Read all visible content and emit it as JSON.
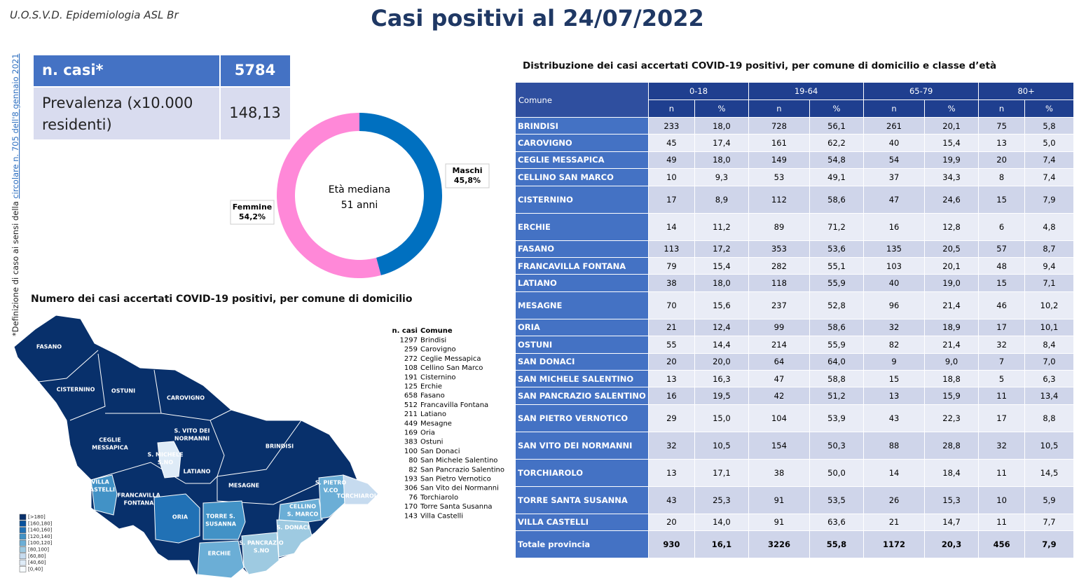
{
  "header": {
    "org": "U.O.S.V.D. Epidemiologia ASL Br",
    "title": "Casi positivi al 24/07/2022"
  },
  "side_note": {
    "text": "*Definizione di caso ai sensi della ",
    "link": "circolare n. 705 dell'8 gennaio 2021"
  },
  "summary": {
    "rows": [
      {
        "label": "n. casi*",
        "value": 5784
      },
      {
        "label_lines": [
          "Prevalenza (x10.000",
          "residenti)"
        ],
        "value": "148,13"
      }
    ]
  },
  "chart_data": {
    "type": "pie",
    "categories": [
      "Maschi",
      "Femmine"
    ],
    "values": [
      45.8,
      54.2
    ],
    "value_labels": [
      "45,8%",
      "54,2%"
    ],
    "colors": [
      "#0070c0",
      "#ff88d8"
    ],
    "center_text": [
      "Età mediana",
      "51 anni"
    ]
  },
  "map": {
    "title": "Numero dei casi accertati COVID-19 positivi, per comune di domicilio",
    "labels": [
      {
        "lines": [
          "FASANO"
        ]
      },
      {
        "lines": [
          "CISTERNINO"
        ]
      },
      {
        "lines": [
          "OSTUNI"
        ]
      },
      {
        "lines": [
          "CAROVIGNO"
        ]
      },
      {
        "lines": [
          "S. VITO DEI",
          "NORMANNI"
        ]
      },
      {
        "lines": [
          "CEGLIE",
          "MESSAPICA"
        ]
      },
      {
        "lines": [
          "S. MICHELE",
          "S.NO"
        ]
      },
      {
        "lines": [
          "LATIANO"
        ]
      },
      {
        "lines": [
          "BRINDISI"
        ]
      },
      {
        "lines": [
          "VILLA",
          "CASTELLI"
        ]
      },
      {
        "lines": [
          "FRANCAVILLA",
          "FONTANA"
        ]
      },
      {
        "lines": [
          "ORIA"
        ]
      },
      {
        "lines": [
          "TORRE S.",
          "SUSANNA"
        ]
      },
      {
        "lines": [
          "MESAGNE"
        ]
      },
      {
        "lines": [
          "S. PIETRO",
          "V.CO"
        ]
      },
      {
        "lines": [
          "TORCHIAROLO"
        ]
      },
      {
        "lines": [
          "CELLINO",
          "S. MARCO"
        ]
      },
      {
        "lines": [
          "S. DONACI"
        ]
      },
      {
        "lines": [
          "S. PANCRAZIO",
          "S.NO"
        ]
      },
      {
        "lines": [
          "ERCHIE"
        ]
      }
    ],
    "legend": [
      {
        "label": "[>180]",
        "color": "#08306b"
      },
      {
        "label": "[160,180]",
        "color": "#08519c"
      },
      {
        "label": "[140,160]",
        "color": "#2171b5"
      },
      {
        "label": "[120,140]",
        "color": "#4292c6"
      },
      {
        "label": "[100,120]",
        "color": "#6baed6"
      },
      {
        "label": "[80,100]",
        "color": "#9ecae1"
      },
      {
        "label": "[60,80]",
        "color": "#c6dbef"
      },
      {
        "label": "[40,60]",
        "color": "#deebf7"
      },
      {
        "label": "[0,40]",
        "color": "#f7fbff"
      }
    ],
    "list": {
      "headers": [
        "n. casi",
        "Comune"
      ],
      "rows": [
        [
          1297,
          "Brindisi"
        ],
        [
          259,
          "Carovigno"
        ],
        [
          272,
          "Ceglie Messapica"
        ],
        [
          108,
          "Cellino San Marco"
        ],
        [
          191,
          "Cisternino"
        ],
        [
          125,
          "Erchie"
        ],
        [
          658,
          "Fasano"
        ],
        [
          512,
          "Francavilla Fontana"
        ],
        [
          211,
          "Latiano"
        ],
        [
          449,
          "Mesagne"
        ],
        [
          169,
          "Oria"
        ],
        [
          383,
          "Ostuni"
        ],
        [
          100,
          "San Donaci"
        ],
        [
          80,
          "San Michele Salentino"
        ],
        [
          82,
          "San Pancrazio Salentino"
        ],
        [
          193,
          "San Pietro Vernotico"
        ],
        [
          306,
          "San Vito dei Normanni"
        ],
        [
          76,
          "Torchiarolo"
        ],
        [
          170,
          "Torre Santa Susanna"
        ],
        [
          143,
          "Villa Castelli"
        ]
      ]
    }
  },
  "table": {
    "title": "Distribuzione dei casi accertati COVID-19 positivi, per comune di domicilio e classe d’età",
    "first_header": "Comune",
    "groups": [
      "0-18",
      "19-64",
      "65-79",
      "80+"
    ],
    "subheaders": [
      "n",
      "%",
      "n",
      "%",
      "n",
      "%",
      "n",
      "%"
    ],
    "rows": [
      [
        "BRINDISI",
        233,
        "18,0",
        728,
        "56,1",
        261,
        "20,1",
        75,
        "5,8"
      ],
      [
        "CAROVIGNO",
        45,
        "17,4",
        161,
        "62,2",
        40,
        "15,4",
        13,
        "5,0"
      ],
      [
        "CEGLIE MESSAPICA",
        49,
        "18,0",
        149,
        "54,8",
        54,
        "19,9",
        20,
        "7,4"
      ],
      [
        "CELLINO SAN MARCO",
        10,
        "9,3",
        53,
        "49,1",
        37,
        "34,3",
        8,
        "7,4"
      ],
      [
        "CISTERNINO",
        17,
        "8,9",
        112,
        "58,6",
        47,
        "24,6",
        15,
        "7,9"
      ],
      [
        "ERCHIE",
        14,
        "11,2",
        89,
        "71,2",
        16,
        "12,8",
        6,
        "4,8"
      ],
      [
        "FASANO",
        113,
        "17,2",
        353,
        "53,6",
        135,
        "20,5",
        57,
        "8,7"
      ],
      [
        "FRANCAVILLA FONTANA",
        79,
        "15,4",
        282,
        "55,1",
        103,
        "20,1",
        48,
        "9,4"
      ],
      [
        "LATIANO",
        38,
        "18,0",
        118,
        "55,9",
        40,
        "19,0",
        15,
        "7,1"
      ],
      [
        "MESAGNE",
        70,
        "15,6",
        237,
        "52,8",
        96,
        "21,4",
        46,
        "10,2"
      ],
      [
        "ORIA",
        21,
        "12,4",
        99,
        "58,6",
        32,
        "18,9",
        17,
        "10,1"
      ],
      [
        "OSTUNI",
        55,
        "14,4",
        214,
        "55,9",
        82,
        "21,4",
        32,
        "8,4"
      ],
      [
        "SAN DONACI",
        20,
        "20,0",
        64,
        "64,0",
        9,
        "9,0",
        7,
        "7,0"
      ],
      [
        "SAN MICHELE SALENTINO",
        13,
        "16,3",
        47,
        "58,8",
        15,
        "18,8",
        5,
        "6,3"
      ],
      [
        "SAN PANCRAZIO SALENTINO",
        16,
        "19,5",
        42,
        "51,2",
        13,
        "15,9",
        11,
        "13,4"
      ],
      [
        "SAN PIETRO VERNOTICO",
        29,
        "15,0",
        104,
        "53,9",
        43,
        "22,3",
        17,
        "8,8"
      ],
      [
        "SAN VITO DEI NORMANNI",
        32,
        "10,5",
        154,
        "50,3",
        88,
        "28,8",
        32,
        "10,5"
      ],
      [
        "TORCHIAROLO",
        13,
        "17,1",
        38,
        "50,0",
        14,
        "18,4",
        11,
        "14,5"
      ],
      [
        "TORRE SANTA SUSANNA",
        43,
        "25,3",
        91,
        "53,5",
        26,
        "15,3",
        10,
        "5,9"
      ],
      [
        "VILLA CASTELLI",
        20,
        "14,0",
        91,
        "63,6",
        21,
        "14,7",
        11,
        "7,7"
      ],
      [
        "Totale provincia",
        930,
        "16,1",
        3226,
        "55,8",
        1172,
        "20,3",
        456,
        "7,9"
      ]
    ]
  }
}
